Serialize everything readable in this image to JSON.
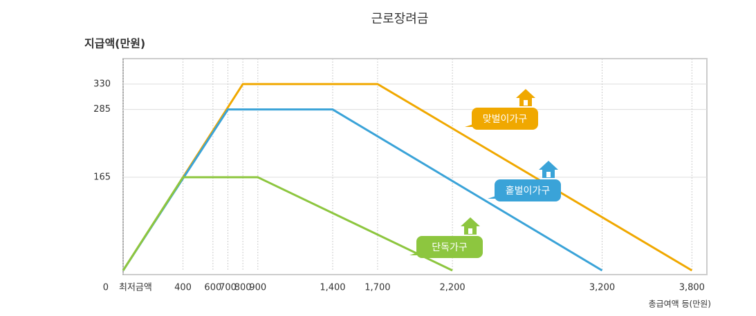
{
  "chart_data": {
    "type": "line",
    "title": "근로장려금",
    "y_label": "지급액(만원)",
    "x_label": "총급여액 등(만원)",
    "xlim": [
      0,
      3900
    ],
    "ylim": [
      0,
      375
    ],
    "xticks": [
      {
        "value": 0,
        "label": "최저금액"
      },
      400,
      600,
      700,
      800,
      900,
      {
        "value": 1400,
        "label": "1,400"
      },
      {
        "value": 1700,
        "label": "1,700"
      },
      {
        "value": 2200,
        "label": "2,200"
      },
      {
        "value": 3200,
        "label": "3,200"
      },
      {
        "value": 3800,
        "label": "3,800"
      }
    ],
    "yticks": [
      0,
      165,
      285,
      330
    ],
    "grid": true,
    "series": [
      {
        "name": "맞벌이가구",
        "color": "#f0a800",
        "x": [
          0,
          800,
          1700,
          3800
        ],
        "values": [
          0,
          330,
          330,
          0
        ]
      },
      {
        "name": "홑벌이가구",
        "color": "#3aa3d8",
        "x": [
          0,
          700,
          1400,
          3200
        ],
        "values": [
          0,
          285,
          285,
          0
        ]
      },
      {
        "name": "단독가구",
        "color": "#8dc63f",
        "x": [
          0,
          400,
          900,
          2200
        ],
        "values": [
          0,
          165,
          165,
          0
        ]
      }
    ]
  }
}
